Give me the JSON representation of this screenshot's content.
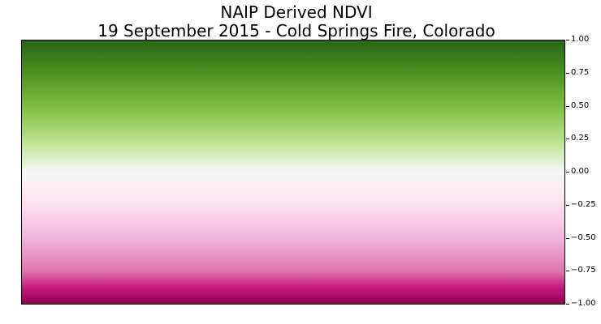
{
  "chart_data": {
    "type": "heatmap",
    "title_lines": [
      "NAIP Derived NDVI",
      "19 September 2015 - Cold Springs Fire, Colorado"
    ],
    "xlabel": "",
    "ylabel": "",
    "colorbar": {
      "orientation": "vertical",
      "position": "right",
      "range": [
        -1.0,
        1.0
      ],
      "ticks": [
        1.0,
        0.75,
        0.5,
        0.25,
        0.0,
        -0.25,
        -0.5,
        -0.75,
        -1.0
      ],
      "tick_labels": [
        "1.00",
        "0.75",
        "0.50",
        "0.25",
        "0.00",
        "−0.25",
        "−0.50",
        "−0.75",
        "−1.00"
      ],
      "colormap": "PiYG",
      "color_stops": [
        {
          "value": 1.0,
          "color": "#276419"
        },
        {
          "value": 0.75,
          "color": "#4d9221"
        },
        {
          "value": 0.5,
          "color": "#7fbc41"
        },
        {
          "value": 0.25,
          "color": "#b8e186"
        },
        {
          "value": 0.0,
          "color": "#f7f7f7"
        },
        {
          "value": -0.25,
          "color": "#fde0ef"
        },
        {
          "value": -0.5,
          "color": "#f1b6da"
        },
        {
          "value": -0.75,
          "color": "#de77ae"
        },
        {
          "value": -0.875,
          "color": "#c51b7d"
        },
        {
          "value": -1.0,
          "color": "#8e0152"
        }
      ]
    },
    "grid": false
  }
}
